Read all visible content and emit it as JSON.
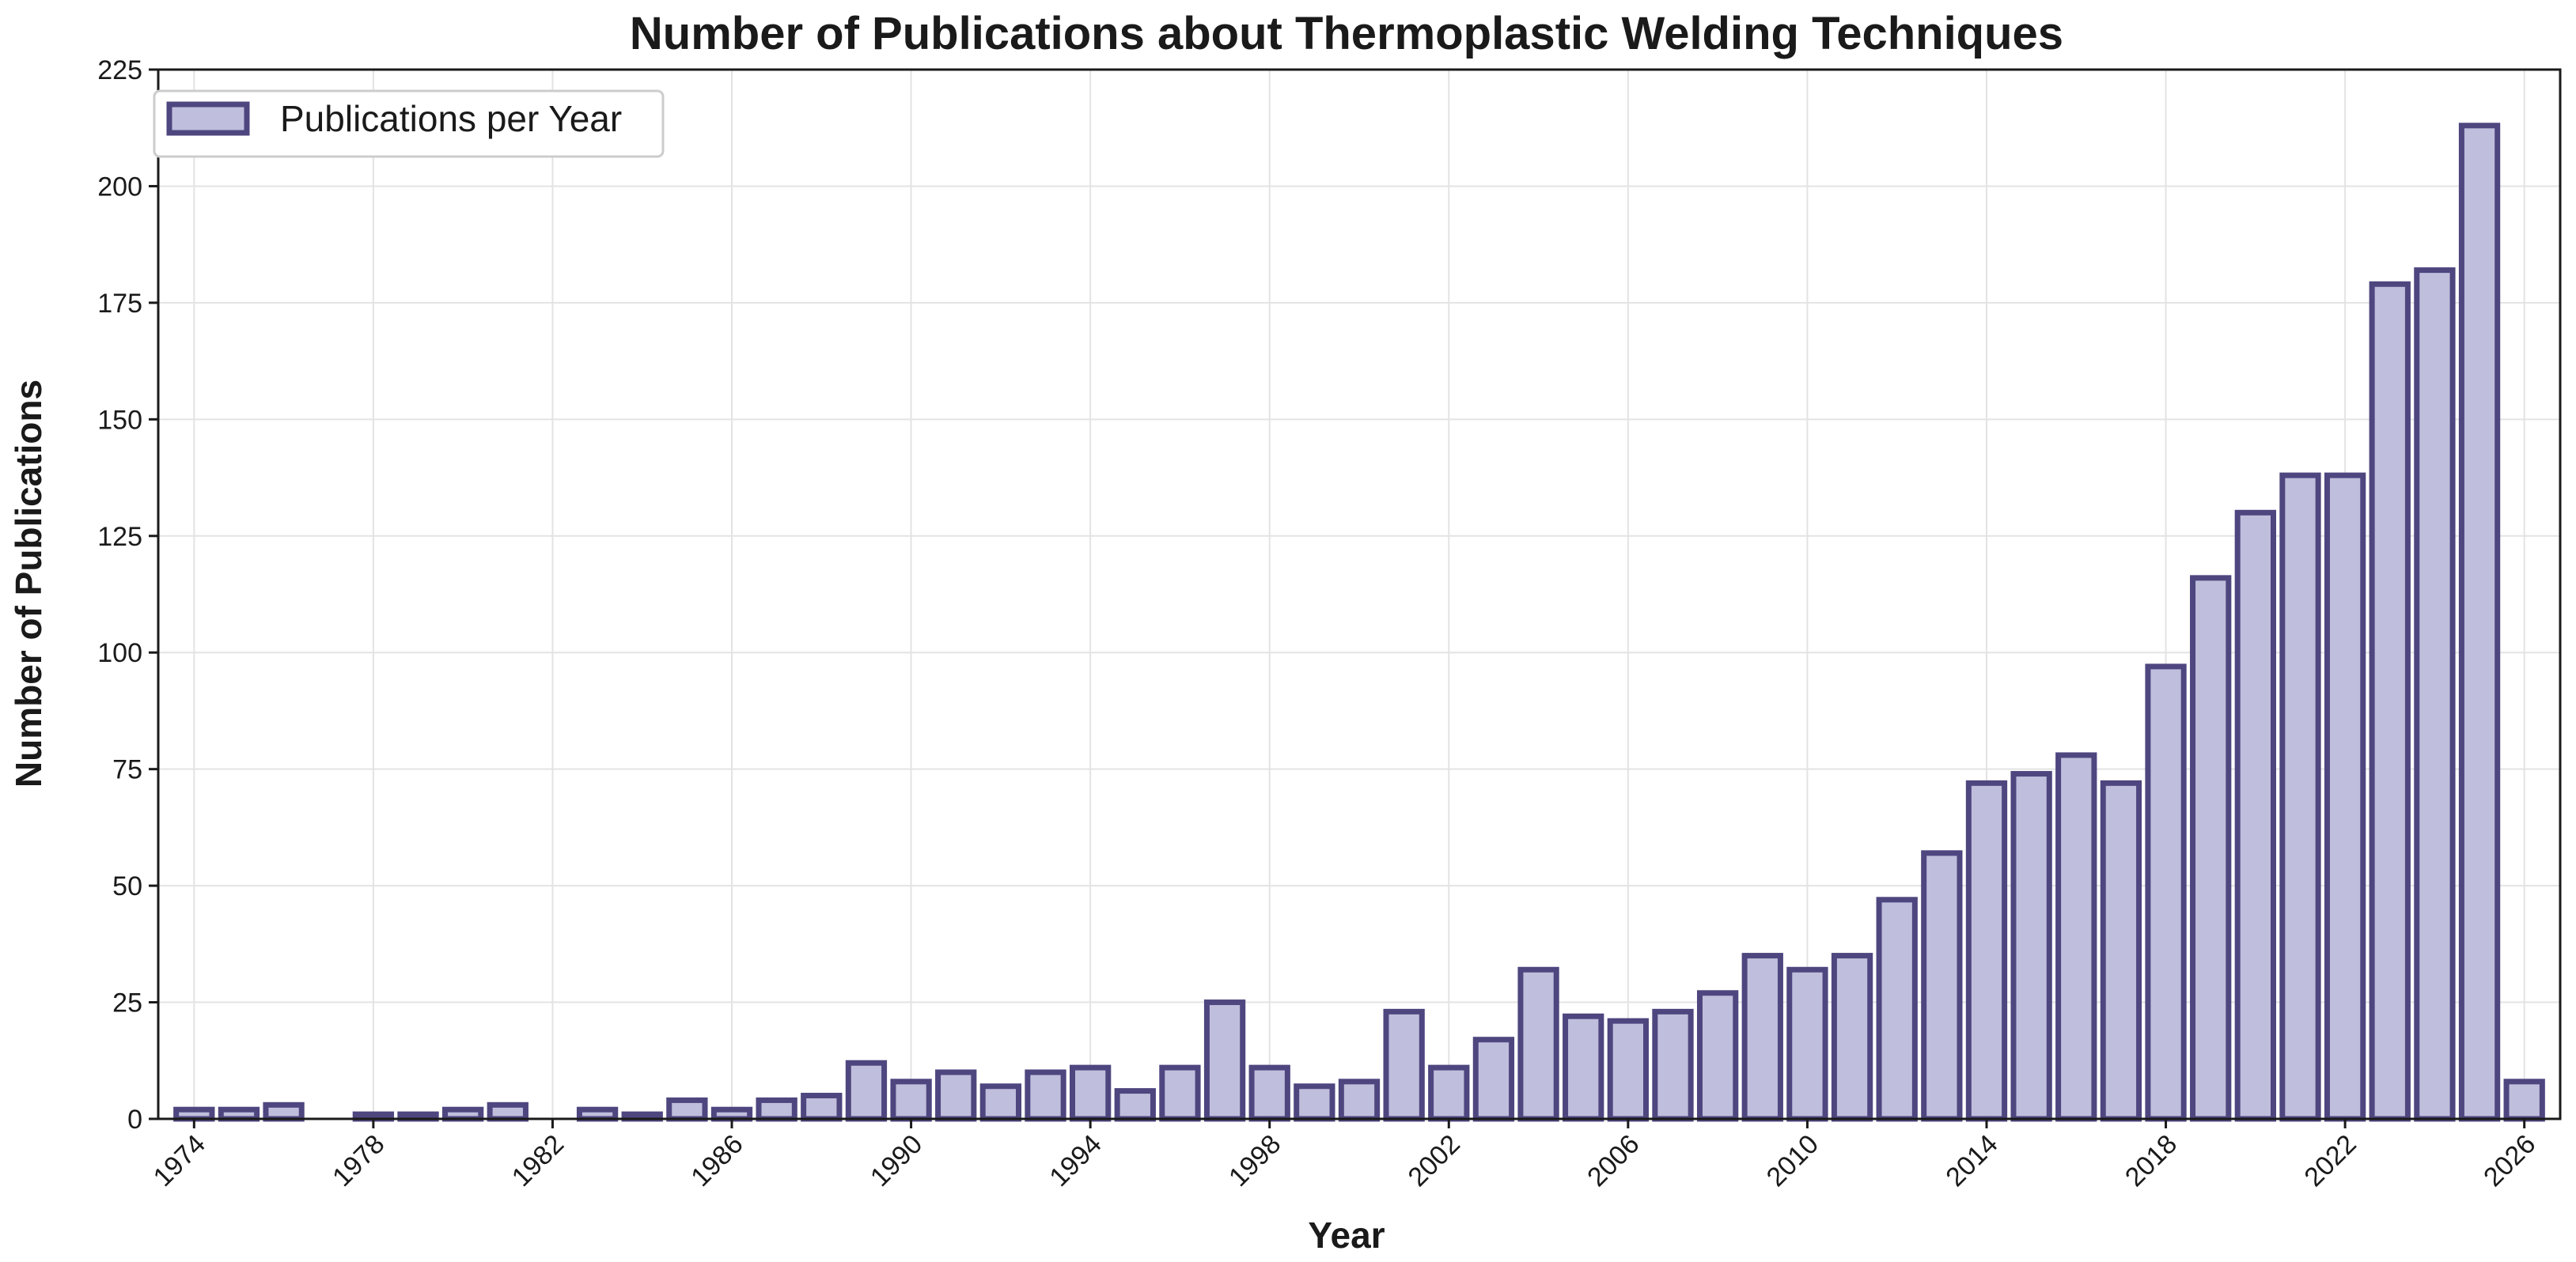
{
  "chart_data": {
    "type": "bar",
    "title": "Number of Publications about Thermoplastic Welding Techniques",
    "xlabel": "Year",
    "ylabel": "Number of Publications",
    "legend": {
      "label": "Publications per Year",
      "placement": "top-left"
    },
    "grid": true,
    "xlim": [
      1973.2,
      2026.8
    ],
    "ylim": [
      0,
      225
    ],
    "xticks": [
      1974,
      1978,
      1982,
      1986,
      1990,
      1994,
      1998,
      2002,
      2006,
      2010,
      2014,
      2018,
      2022,
      2026
    ],
    "yticks": [
      0,
      25,
      50,
      75,
      100,
      125,
      150,
      175,
      200,
      225
    ],
    "x": [
      1974,
      1975,
      1976,
      1978,
      1979,
      1980,
      1981,
      1983,
      1984,
      1985,
      1986,
      1987,
      1988,
      1989,
      1990,
      1991,
      1992,
      1993,
      1994,
      1995,
      1996,
      1997,
      1998,
      1999,
      2000,
      2001,
      2002,
      2003,
      2004,
      2005,
      2006,
      2007,
      2008,
      2009,
      2010,
      2011,
      2012,
      2013,
      2014,
      2015,
      2016,
      2017,
      2018,
      2019,
      2020,
      2021,
      2022,
      2023,
      2024,
      2025,
      2026
    ],
    "values": [
      2,
      2,
      3,
      1,
      1,
      2,
      3,
      2,
      1,
      4,
      2,
      4,
      5,
      12,
      8,
      10,
      7,
      10,
      11,
      6,
      11,
      25,
      11,
      7,
      8,
      23,
      11,
      17,
      32,
      22,
      21,
      23,
      27,
      35,
      32,
      35,
      47,
      57,
      72,
      74,
      78,
      72,
      97,
      116,
      130,
      138,
      138,
      179,
      182,
      213,
      8
    ],
    "colors": {
      "bar_fill": "#bfbedc",
      "bar_edge": "#4e467f",
      "grid": "#e3e3e3",
      "axis": "#1a1a1a"
    }
  }
}
